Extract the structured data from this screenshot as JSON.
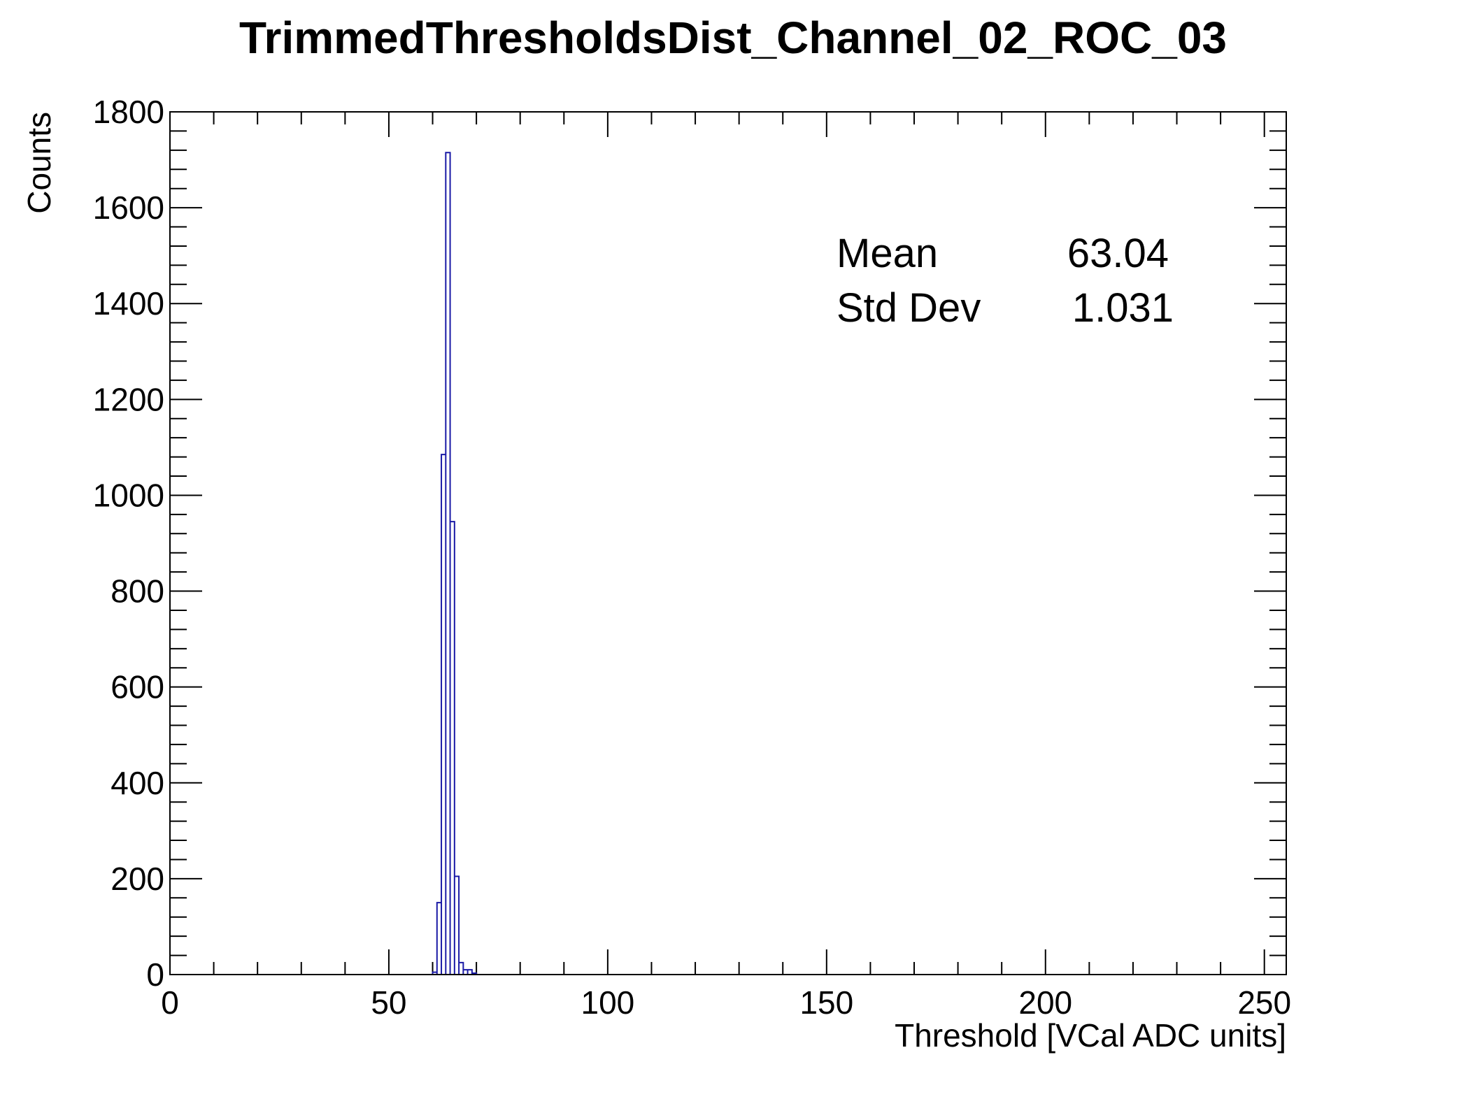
{
  "chart_data": {
    "type": "histogram",
    "title": "TrimmedThresholdsDist_Channel_02_ROC_03",
    "xlabel": "Threshold [VCal ADC units]",
    "ylabel": "Counts",
    "xlim": [
      0,
      255
    ],
    "ylim": [
      0,
      1800
    ],
    "x_ticks": [
      0,
      50,
      100,
      150,
      200,
      250
    ],
    "y_ticks": [
      0,
      200,
      400,
      600,
      800,
      1000,
      1200,
      1400,
      1600,
      1800
    ],
    "bin_width": 1,
    "bins": [
      {
        "x": 60,
        "count": 5
      },
      {
        "x": 61,
        "count": 150
      },
      {
        "x": 62,
        "count": 1085
      },
      {
        "x": 63,
        "count": 1715
      },
      {
        "x": 64,
        "count": 945
      },
      {
        "x": 65,
        "count": 205
      },
      {
        "x": 66,
        "count": 25
      },
      {
        "x": 67,
        "count": 10
      },
      {
        "x": 68,
        "count": 10
      },
      {
        "x": 69,
        "count": 3
      }
    ],
    "line_color": "#1a1aa6",
    "grid": false,
    "stats": [
      {
        "label": "Mean",
        "value": "63.04"
      },
      {
        "label": "Std Dev",
        "value": "1.031"
      }
    ]
  }
}
